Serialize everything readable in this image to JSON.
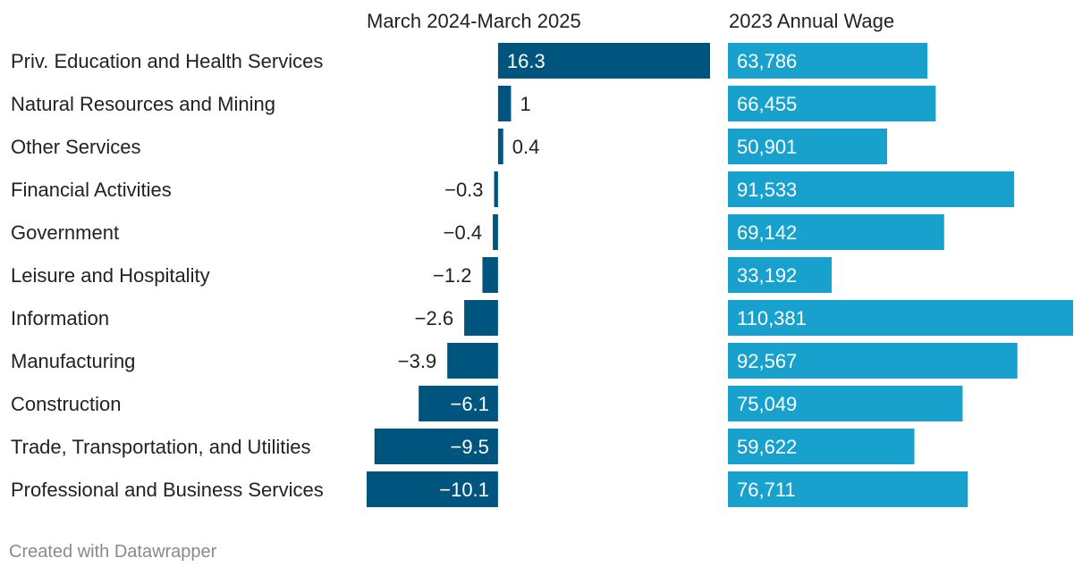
{
  "chart_data": {
    "type": "bar",
    "orientation": "horizontal",
    "categories": [
      "Priv. Education and Health Services",
      "Natural Resources and Mining",
      "Other Services",
      "Financial Activities",
      "Government",
      "Leisure and Hospitality",
      "Information",
      "Manufacturing",
      "Construction",
      "Trade, Transportation, and Utilities",
      "Professional and Business Services"
    ],
    "series": [
      {
        "name": "March 2024-March 2025",
        "values": [
          16.3,
          1,
          0.4,
          -0.3,
          -0.4,
          -1.2,
          -2.6,
          -3.9,
          -6.1,
          -9.5,
          -10.1
        ],
        "labels": [
          "16.3",
          "1",
          "0.4",
          "−0.3",
          "−0.4",
          "−1.2",
          "−2.6",
          "−3.9",
          "−6.1",
          "−9.5",
          "−10.1"
        ],
        "color": "#00557f",
        "range": [
          -10.1,
          16.3
        ]
      },
      {
        "name": "2023 Annual Wage",
        "values": [
          63786,
          66455,
          50901,
          91533,
          69142,
          33192,
          110381,
          92567,
          75049,
          59622,
          76711
        ],
        "labels": [
          "63,786",
          "66,455",
          "50,901",
          "91,533",
          "69,142",
          "33,192",
          "110,381",
          "92,567",
          "75,049",
          "59,622",
          "76,711"
        ],
        "color": "#18a1cd",
        "range": [
          0,
          110381
        ]
      }
    ],
    "title": "",
    "xlabel": "",
    "ylabel": ""
  },
  "footer": {
    "credit": "Created with Datawrapper"
  }
}
